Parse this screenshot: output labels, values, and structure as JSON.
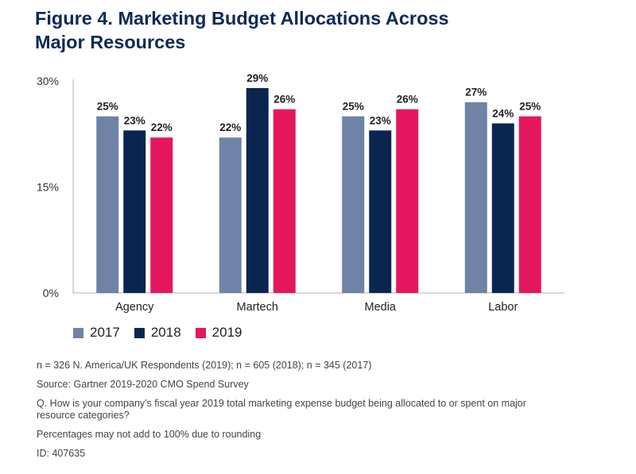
{
  "figure": {
    "title": "Figure 4. Marketing Budget Allocations Across Major Resources"
  },
  "colors": {
    "2017": "#6f83a6",
    "2018": "#0a2650",
    "2019": "#e4175e"
  },
  "chart_data": {
    "type": "bar",
    "title": "Figure 4. Marketing Budget Allocations Across Major Resources",
    "xlabel": "",
    "ylabel": "",
    "ylim": [
      0,
      30
    ],
    "yticks": [
      "0%",
      "15%",
      "30%"
    ],
    "categories": [
      "Agency",
      "Martech",
      "Media",
      "Labor"
    ],
    "series": [
      {
        "name": "2017",
        "values": [
          25,
          22,
          25,
          27
        ],
        "labels": [
          "25%",
          "22%",
          "25%",
          "27%"
        ]
      },
      {
        "name": "2018",
        "values": [
          23,
          29,
          23,
          24
        ],
        "labels": [
          "23%",
          "29%",
          "23%",
          "24%"
        ]
      },
      {
        "name": "2019",
        "values": [
          22,
          26,
          26,
          25
        ],
        "labels": [
          "22%",
          "26%",
          "26%",
          "25%"
        ]
      }
    ],
    "grid": false,
    "legend": "bottom-left"
  },
  "notes": {
    "n": "n = 326 N. America/UK Respondents (2019); n = 605 (2018); n = 345 (2017)",
    "source": "Source: Gartner 2019-2020 CMO Spend Survey",
    "question": "Q. How is your company's fiscal year 2019 total marketing expense budget being allocated to or spent on major resource categories?",
    "rounding": "Percentages may not add to 100% due to rounding",
    "id": "ID: 407635"
  }
}
